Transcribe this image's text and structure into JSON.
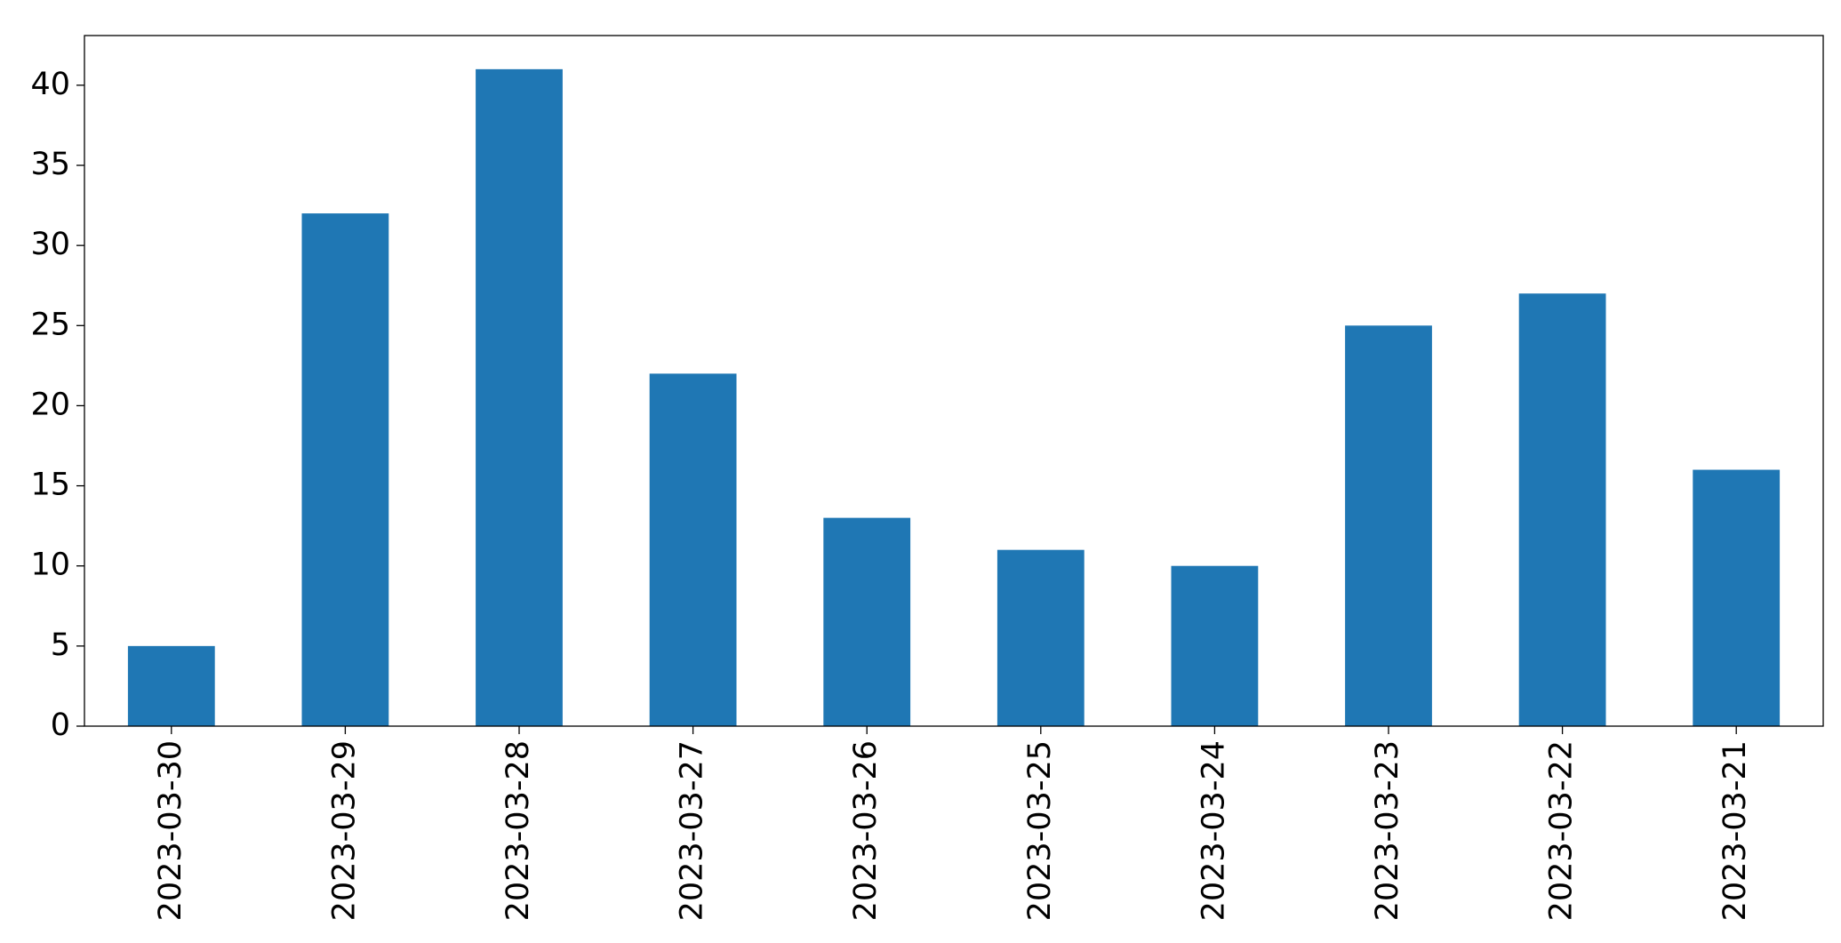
{
  "chart_data": {
    "type": "bar",
    "categories": [
      "2023-03-30",
      "2023-03-29",
      "2023-03-28",
      "2023-03-27",
      "2023-03-26",
      "2023-03-25",
      "2023-03-24",
      "2023-03-23",
      "2023-03-22",
      "2023-03-21"
    ],
    "values": [
      5,
      32,
      41,
      22,
      13,
      11,
      10,
      25,
      27,
      16
    ],
    "color": "#1f77b4",
    "ylim": [
      0,
      43.1
    ],
    "yticks": [
      0,
      5,
      10,
      15,
      20,
      25,
      30,
      35,
      40
    ],
    "grid": false
  }
}
